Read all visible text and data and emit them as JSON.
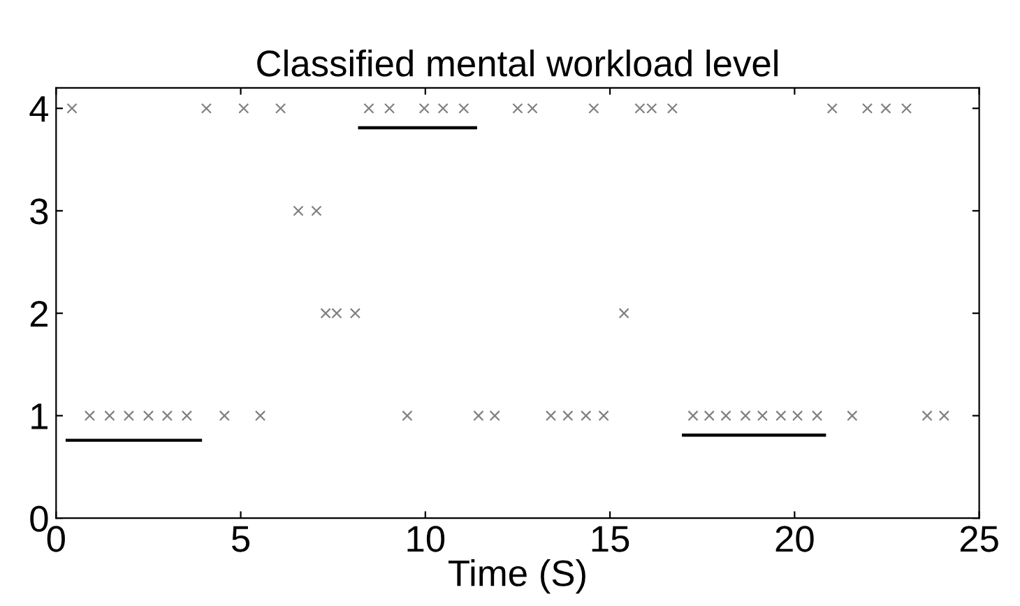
{
  "chart_data": {
    "type": "scatter",
    "title": "Classified mental workload level",
    "xlabel": "Time (S)",
    "xlim": [
      0,
      25
    ],
    "ylim": [
      0,
      4.2
    ],
    "xticks": [
      0,
      5,
      10,
      15,
      20,
      25
    ],
    "yticks": [
      0,
      1,
      2,
      3,
      4
    ],
    "grid": false,
    "series": [
      {
        "marker": "cross",
        "color": "#808080",
        "x": [
          0.91,
          1.45,
          1.97,
          2.5,
          3.01,
          3.54,
          4.56,
          5.53,
          9.51,
          11.44,
          11.88,
          13.4,
          13.86,
          14.35,
          14.83,
          17.25,
          17.69,
          18.14,
          18.67,
          19.13,
          19.63,
          20.08,
          20.61,
          21.56,
          23.59,
          24.05
        ],
        "values": [
          1,
          1,
          1,
          1,
          1,
          1,
          1,
          1,
          1,
          1,
          1,
          1,
          1,
          1,
          1,
          1,
          1,
          1,
          1,
          1,
          1,
          1,
          1,
          1,
          1,
          1
        ]
      },
      {
        "marker": "cross",
        "color": "#808080",
        "x": [
          7.3,
          7.6,
          8.1,
          15.38
        ],
        "values": [
          2,
          2,
          2,
          2
        ]
      },
      {
        "marker": "cross",
        "color": "#808080",
        "x": [
          6.56,
          7.05
        ],
        "values": [
          3,
          3
        ]
      },
      {
        "marker": "cross",
        "color": "#808080",
        "x": [
          0.43,
          4.07,
          5.08,
          6.08,
          8.47,
          9.03,
          9.97,
          10.48,
          11.04,
          12.5,
          12.9,
          14.56,
          15.81,
          16.13,
          16.69,
          21.02,
          21.97,
          22.47,
          23.03
        ],
        "values": [
          4,
          4,
          4,
          4,
          4,
          4,
          4,
          4,
          4,
          4,
          4,
          4,
          4,
          4,
          4,
          4,
          4,
          4,
          4
        ]
      },
      {
        "type": "line",
        "color": "#000000",
        "line_style": "solid",
        "marker": "none",
        "x": [
          0.3,
          3.91
        ],
        "values": [
          0.76,
          0.76
        ]
      },
      {
        "type": "line",
        "color": "#000000",
        "line_style": "solid",
        "marker": "none",
        "x": [
          8.22,
          11.36
        ],
        "values": [
          3.81,
          3.81
        ]
      },
      {
        "type": "line",
        "color": "#000000",
        "line_style": "solid",
        "marker": "none",
        "x": [
          16.99,
          20.81
        ],
        "values": [
          0.81,
          0.81
        ]
      }
    ]
  }
}
